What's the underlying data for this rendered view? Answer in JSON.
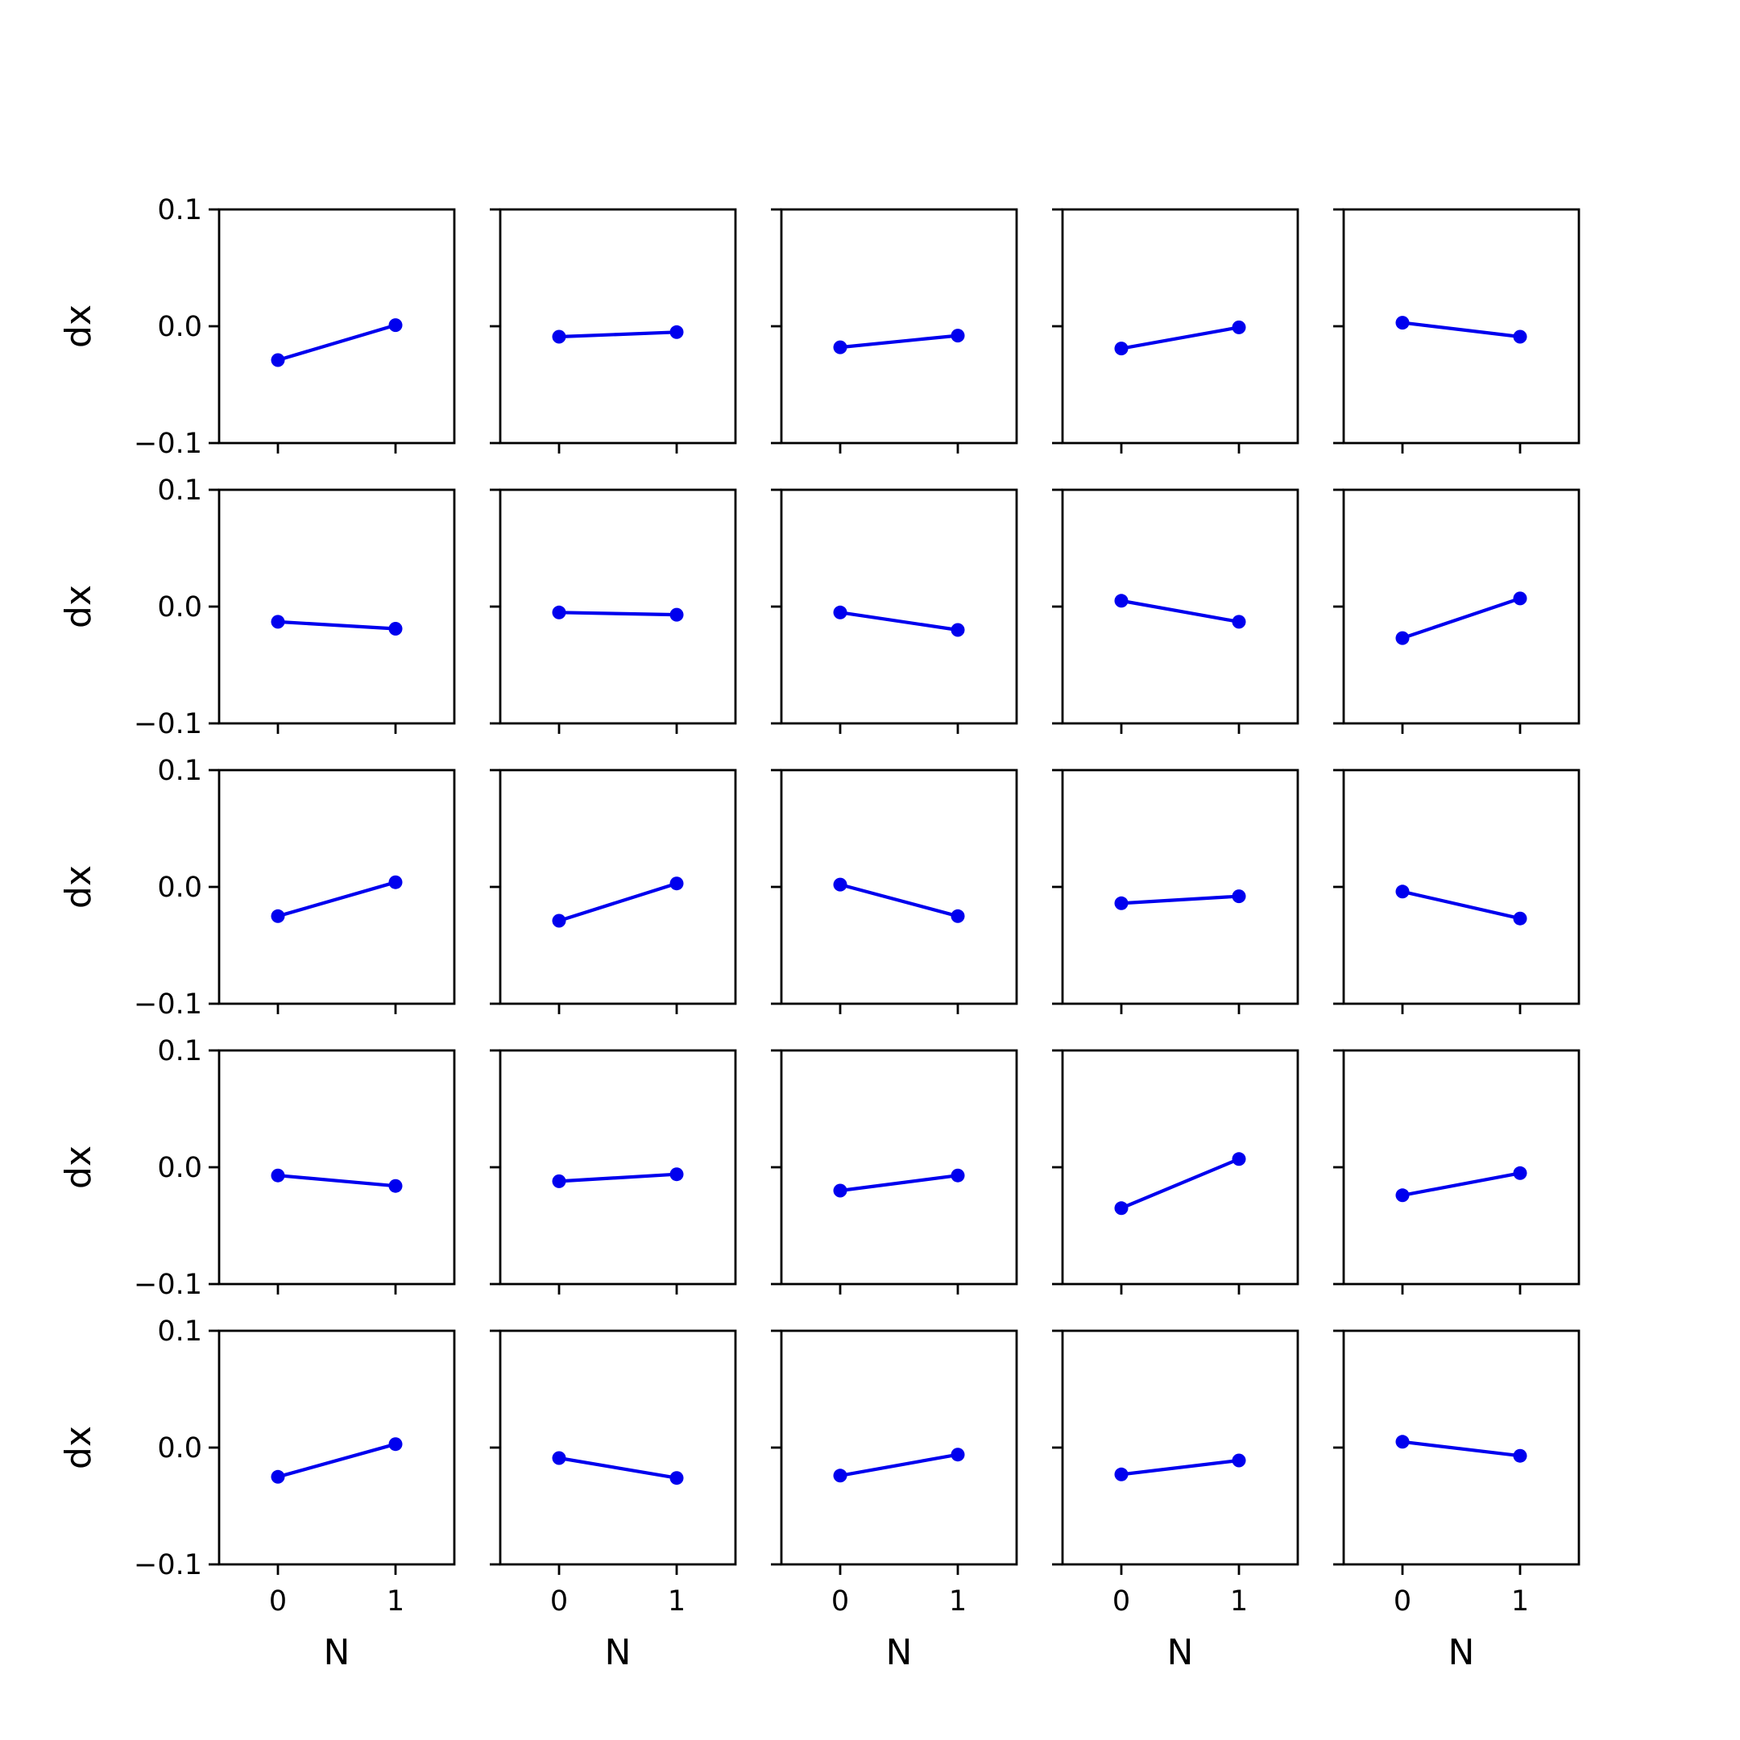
{
  "chart_data": {
    "type": "line",
    "layout": {
      "rows": 5,
      "cols": 5
    },
    "line_color": "#0000ee",
    "xlabel": "N",
    "ylabel": "dx",
    "xlim": [
      -0.5,
      1.5
    ],
    "ylim": [
      -0.1,
      0.1
    ],
    "x_ticks": [
      0,
      1
    ],
    "x_tick_labels": [
      "0",
      "1"
    ],
    "y_ticks": [
      -0.1,
      0.0,
      0.1
    ],
    "y_tick_labels": [
      "−0.1",
      "0.0",
      "0.1"
    ],
    "grid": false,
    "panels": [
      {
        "x": [
          0,
          1
        ],
        "y": [
          -0.029,
          0.001
        ]
      },
      {
        "x": [
          0,
          1
        ],
        "y": [
          -0.009,
          -0.005
        ]
      },
      {
        "x": [
          0,
          1
        ],
        "y": [
          -0.018,
          -0.008
        ]
      },
      {
        "x": [
          0,
          1
        ],
        "y": [
          -0.019,
          -0.001
        ]
      },
      {
        "x": [
          0,
          1
        ],
        "y": [
          0.003,
          -0.009
        ]
      },
      {
        "x": [
          0,
          1
        ],
        "y": [
          -0.013,
          -0.019
        ]
      },
      {
        "x": [
          0,
          1
        ],
        "y": [
          -0.005,
          -0.007
        ]
      },
      {
        "x": [
          0,
          1
        ],
        "y": [
          -0.005,
          -0.02
        ]
      },
      {
        "x": [
          0,
          1
        ],
        "y": [
          0.005,
          -0.013
        ]
      },
      {
        "x": [
          0,
          1
        ],
        "y": [
          -0.027,
          0.007
        ]
      },
      {
        "x": [
          0,
          1
        ],
        "y": [
          -0.025,
          0.004
        ]
      },
      {
        "x": [
          0,
          1
        ],
        "y": [
          -0.029,
          0.003
        ]
      },
      {
        "x": [
          0,
          1
        ],
        "y": [
          0.002,
          -0.025
        ]
      },
      {
        "x": [
          0,
          1
        ],
        "y": [
          -0.014,
          -0.008
        ]
      },
      {
        "x": [
          0,
          1
        ],
        "y": [
          -0.004,
          -0.027
        ]
      },
      {
        "x": [
          0,
          1
        ],
        "y": [
          -0.007,
          -0.016
        ]
      },
      {
        "x": [
          0,
          1
        ],
        "y": [
          -0.012,
          -0.006
        ]
      },
      {
        "x": [
          0,
          1
        ],
        "y": [
          -0.02,
          -0.007
        ]
      },
      {
        "x": [
          0,
          1
        ],
        "y": [
          -0.035,
          0.007
        ]
      },
      {
        "x": [
          0,
          1
        ],
        "y": [
          -0.024,
          -0.005
        ]
      },
      {
        "x": [
          0,
          1
        ],
        "y": [
          -0.025,
          0.003
        ]
      },
      {
        "x": [
          0,
          1
        ],
        "y": [
          -0.009,
          -0.026
        ]
      },
      {
        "x": [
          0,
          1
        ],
        "y": [
          -0.024,
          -0.006
        ]
      },
      {
        "x": [
          0,
          1
        ],
        "y": [
          -0.023,
          -0.011
        ]
      },
      {
        "x": [
          0,
          1
        ],
        "y": [
          0.005,
          -0.007
        ]
      }
    ]
  }
}
